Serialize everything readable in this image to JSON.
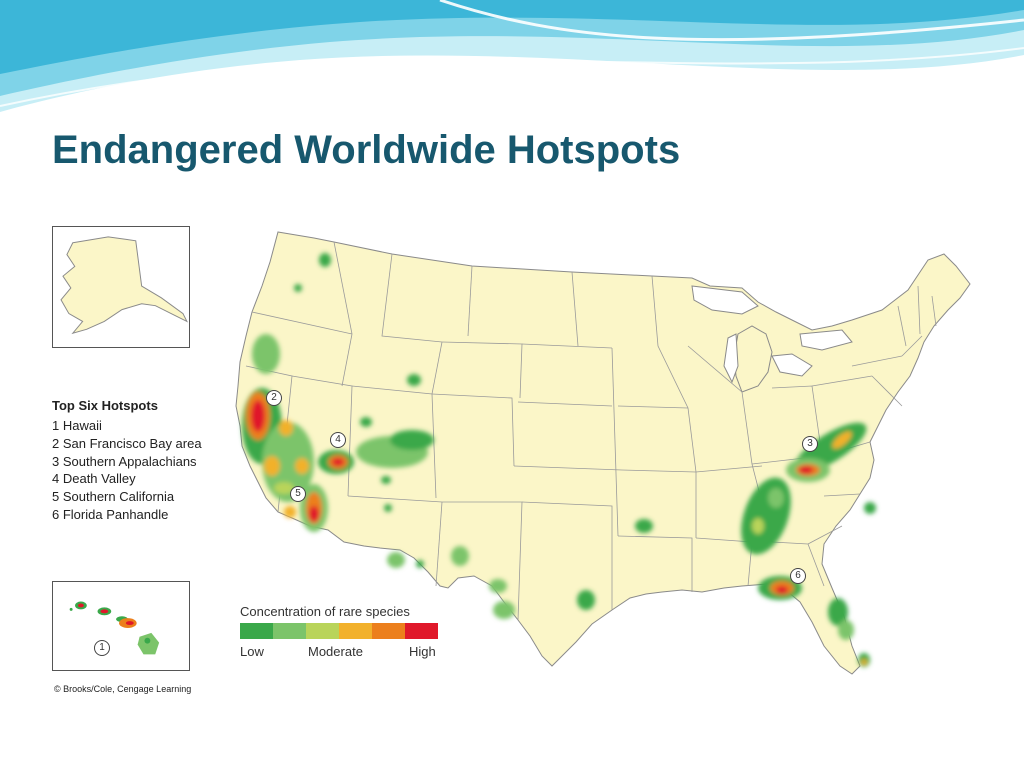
{
  "slide": {
    "title": "Endangered Worldwide Hotspots"
  },
  "map": {
    "legend": {
      "title": "Top Six Hotspots",
      "items": [
        {
          "number": "1",
          "label": "1 Hawaii"
        },
        {
          "number": "2",
          "label": "2 San Francisco Bay area"
        },
        {
          "number": "3",
          "label": "3 Southern Appalachians"
        },
        {
          "number": "4",
          "label": "4 Death Valley"
        },
        {
          "number": "5",
          "label": "5 Southern California"
        },
        {
          "number": "6",
          "label": "6 Florida Panhandle"
        }
      ]
    },
    "scale": {
      "title": "Concentration of rare species",
      "low": "Low",
      "moderate": "Moderate",
      "high": "High",
      "colors": [
        "#3aa84a",
        "#7cc46a",
        "#b9d45a",
        "#f2b12c",
        "#ec7f1c",
        "#e0182a"
      ]
    },
    "callouts": {
      "hawaii": "1",
      "sf_bay": "2",
      "appalachians": "3",
      "death_valley": "4",
      "socal": "5",
      "florida": "6"
    },
    "credit": "© Brooks/Cole, Cengage Learning",
    "colors": {
      "land": "#fbf6c8",
      "border": "#9a9a9a",
      "title": "#17586e"
    }
  }
}
